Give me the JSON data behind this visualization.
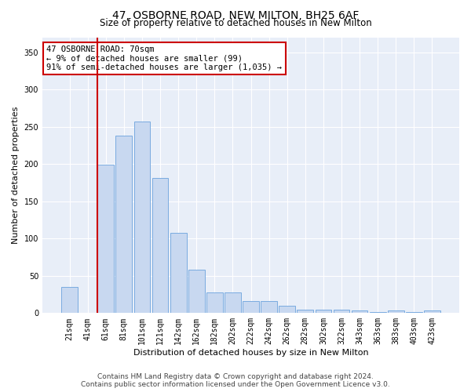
{
  "title": "47, OSBORNE ROAD, NEW MILTON, BH25 6AF",
  "subtitle": "Size of property relative to detached houses in New Milton",
  "xlabel": "Distribution of detached houses by size in New Milton",
  "ylabel": "Number of detached properties",
  "categories": [
    "21sqm",
    "41sqm",
    "61sqm",
    "81sqm",
    "101sqm",
    "121sqm",
    "142sqm",
    "162sqm",
    "182sqm",
    "202sqm",
    "222sqm",
    "242sqm",
    "262sqm",
    "282sqm",
    "302sqm",
    "322sqm",
    "343sqm",
    "363sqm",
    "383sqm",
    "403sqm",
    "423sqm"
  ],
  "values": [
    35,
    0,
    199,
    238,
    257,
    181,
    108,
    58,
    28,
    28,
    16,
    16,
    10,
    5,
    5,
    5,
    3,
    1,
    3,
    1,
    3
  ],
  "bar_color": "#c8d8f0",
  "bar_edge_color": "#7aabe0",
  "vline_color": "#cc0000",
  "vline_index": 2.0,
  "annotation_text": "47 OSBORNE ROAD: 70sqm\n← 9% of detached houses are smaller (99)\n91% of semi-detached houses are larger (1,035) →",
  "annotation_box_facecolor": "#ffffff",
  "annotation_box_edgecolor": "#cc0000",
  "ylim": [
    0,
    370
  ],
  "yticks": [
    0,
    50,
    100,
    150,
    200,
    250,
    300,
    350
  ],
  "plot_bg_color": "#e8eef8",
  "grid_color": "#ffffff",
  "footer_line1": "Contains HM Land Registry data © Crown copyright and database right 2024.",
  "footer_line2": "Contains public sector information licensed under the Open Government Licence v3.0.",
  "title_fontsize": 10,
  "subtitle_fontsize": 8.5,
  "xlabel_fontsize": 8,
  "ylabel_fontsize": 8,
  "tick_fontsize": 7,
  "annotation_fontsize": 7.5,
  "footer_fontsize": 6.5
}
